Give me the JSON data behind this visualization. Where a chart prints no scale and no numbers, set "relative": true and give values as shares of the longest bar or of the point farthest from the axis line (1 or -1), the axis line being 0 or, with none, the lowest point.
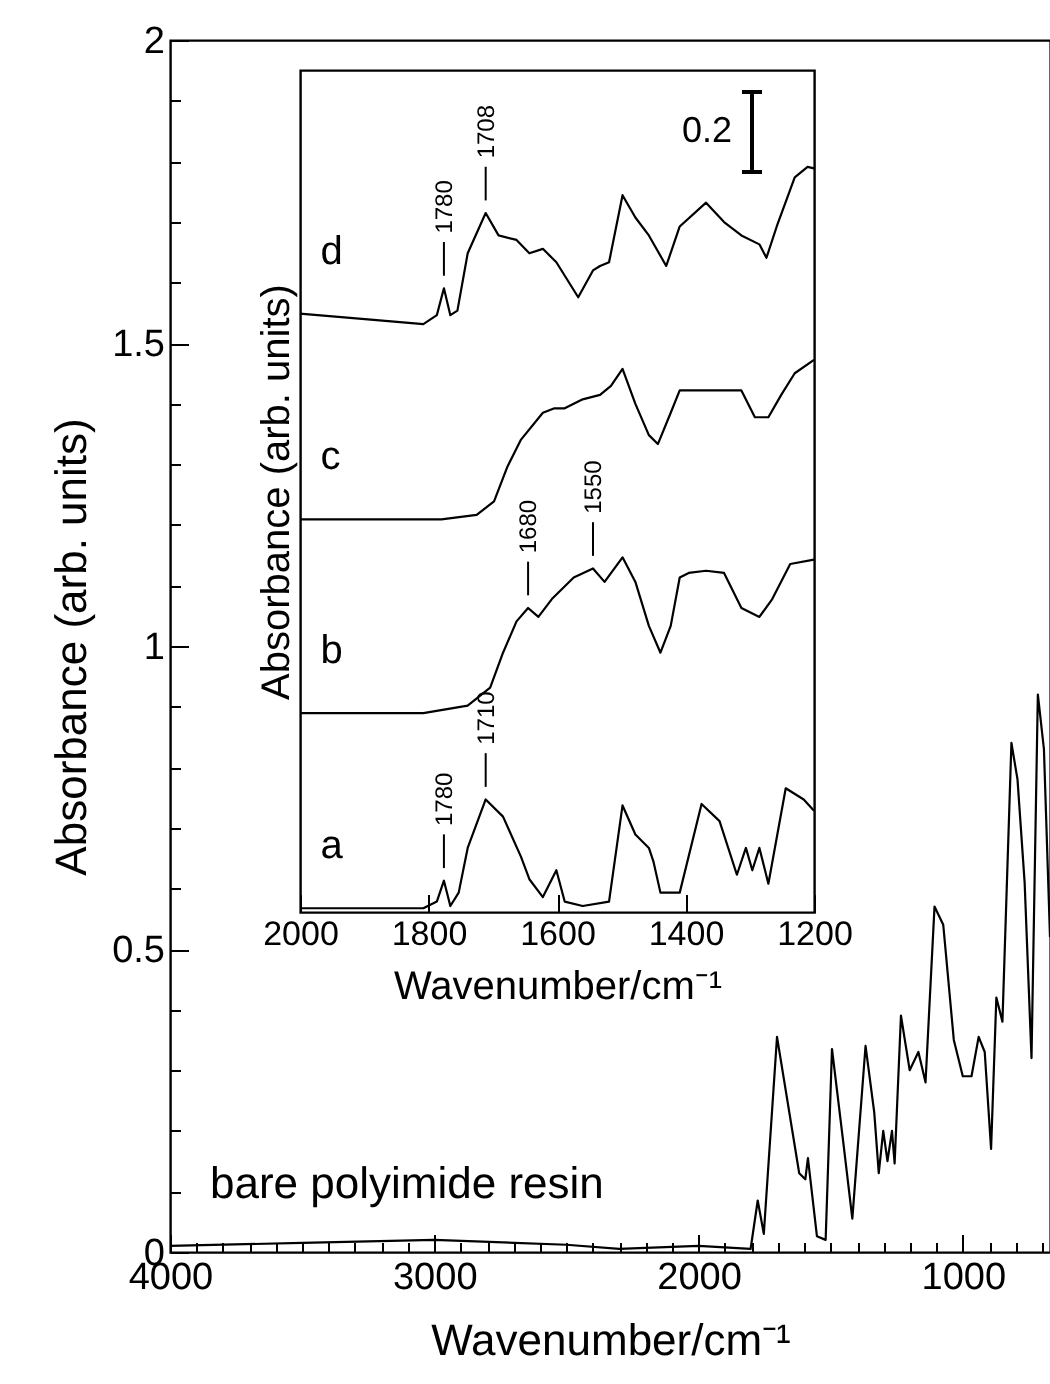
{
  "chart_data": [
    {
      "type": "line",
      "xlabel": "Wavenumber/cm⁻¹",
      "ylabel": "Absorbance (arb. units)",
      "color": "#000000",
      "xlim": [
        4000,
        670
      ],
      "ylim": [
        0,
        2
      ],
      "xticks": [
        4000,
        3000,
        2000,
        1000,
        {
          "value": 3900,
          "label": null
        },
        {
          "value": 3800,
          "label": null
        },
        {
          "value": 3700,
          "label": null
        },
        {
          "value": 3600,
          "label": null
        },
        {
          "value": 3500,
          "label": null
        },
        {
          "value": 3400,
          "label": null
        },
        {
          "value": 3300,
          "label": null
        },
        {
          "value": 3200,
          "label": null
        },
        {
          "value": 3100,
          "label": null
        },
        {
          "value": 2900,
          "label": null
        },
        {
          "value": 2800,
          "label": null
        },
        {
          "value": 2700,
          "label": null
        },
        {
          "value": 2600,
          "label": null
        },
        {
          "value": 2500,
          "label": null
        },
        {
          "value": 2400,
          "label": null
        },
        {
          "value": 2300,
          "label": null
        },
        {
          "value": 2200,
          "label": null
        },
        {
          "value": 2100,
          "label": null
        },
        {
          "value": 1900,
          "label": null
        },
        {
          "value": 1800,
          "label": null
        },
        {
          "value": 1700,
          "label": null
        },
        {
          "value": 1600,
          "label": null
        },
        {
          "value": 1500,
          "label": null
        },
        {
          "value": 1400,
          "label": null
        },
        {
          "value": 1300,
          "label": null
        },
        {
          "value": 1200,
          "label": null
        },
        {
          "value": 1100,
          "label": null
        },
        {
          "value": 900,
          "label": null
        },
        {
          "value": 800,
          "label": null
        },
        {
          "value": 700,
          "label": null
        }
      ],
      "yticks": [
        0,
        0.5,
        1,
        1.5,
        2,
        {
          "value": 0.1,
          "label": null
        },
        {
          "value": 0.2,
          "label": null
        },
        {
          "value": 0.3,
          "label": null
        },
        {
          "value": 0.4,
          "label": null
        },
        {
          "value": 0.6,
          "label": null
        },
        {
          "value": 0.7,
          "label": null
        },
        {
          "value": 0.8,
          "label": null
        },
        {
          "value": 0.9,
          "label": null
        },
        {
          "value": 1.1,
          "label": null
        },
        {
          "value": 1.2,
          "label": null
        },
        {
          "value": 1.3,
          "label": null
        },
        {
          "value": 1.4,
          "label": null
        },
        {
          "value": 1.6,
          "label": null
        },
        {
          "value": 1.7,
          "label": null
        },
        {
          "value": 1.8,
          "label": null
        },
        {
          "value": 1.9,
          "label": null
        }
      ],
      "x": [
        4000,
        3500,
        3000,
        2500,
        2300,
        2000,
        1803,
        1776,
        1753,
        1703,
        1619,
        1596,
        1586,
        1552,
        1519,
        1495,
        1452,
        1418,
        1368,
        1335,
        1318,
        1301,
        1285,
        1268,
        1258,
        1234,
        1201,
        1168,
        1141,
        1107,
        1074,
        1034,
        1000,
        967,
        940,
        917,
        893,
        873,
        850,
        816,
        793,
        766,
        740,
        716,
        693,
        670
      ],
      "values": [
        0.01,
        0.015,
        0.02,
        0.012,
        0.005,
        0.01,
        0.005,
        0.085,
        0.03,
        0.355,
        0.13,
        0.12,
        0.155,
        0.026,
        0.02,
        0.335,
        0.18,
        0.055,
        0.34,
        0.23,
        0.13,
        0.2,
        0.15,
        0.2,
        0.146,
        0.39,
        0.3,
        0.33,
        0.28,
        0.57,
        0.54,
        0.35,
        0.29,
        0.29,
        0.355,
        0.33,
        0.17,
        0.42,
        0.38,
        0.84,
        0.78,
        0.61,
        0.32,
        0.92,
        0.83,
        0.52
      ],
      "annotations": [
        "bare polyimide resin"
      ]
    },
    {
      "type": "line",
      "relative": true,
      "xlabel": "Wavenumber/cm⁻¹",
      "ylabel": "Absorbance (arb. units)",
      "xlim": [
        2000,
        1200
      ],
      "xticks": [
        2000,
        1800,
        1600,
        1400,
        1200
      ],
      "series": [
        {
          "name": "a",
          "color": "#000000",
          "x": [
            2000,
            1808,
            1787,
            1776,
            1766,
            1753,
            1739,
            1711,
            1684,
            1656,
            1643,
            1622,
            1601,
            1588,
            1560,
            1519,
            1498,
            1478,
            1457,
            1450,
            1439,
            1409,
            1375,
            1347,
            1320,
            1306,
            1296,
            1285,
            1271,
            1244,
            1216,
            1200
          ],
          "values": [
            0.005,
            0.005,
            0.014,
            0.042,
            0.008,
            0.026,
            0.086,
            0.151,
            0.128,
            0.074,
            0.044,
            0.02,
            0.056,
            0.014,
            0.008,
            0.014,
            0.143,
            0.104,
            0.086,
            0.068,
            0.026,
            0.026,
            0.145,
            0.122,
            0.05,
            0.086,
            0.056,
            0.086,
            0.038,
            0.166,
            0.151,
            0.136
          ]
        },
        {
          "name": "b",
          "color": "#000000",
          "x": [
            2000,
            1808,
            1739,
            1704,
            1684,
            1663,
            1645,
            1629,
            1608,
            1574,
            1544,
            1526,
            1498,
            1478,
            1457,
            1439,
            1423,
            1409,
            1395,
            1368,
            1340,
            1313,
            1285,
            1265,
            1237,
            1200
          ],
          "values": [
            0.267,
            0.267,
            0.277,
            0.301,
            0.348,
            0.39,
            0.408,
            0.396,
            0.42,
            0.449,
            0.461,
            0.443,
            0.476,
            0.443,
            0.384,
            0.348,
            0.384,
            0.449,
            0.455,
            0.458,
            0.455,
            0.408,
            0.396,
            0.42,
            0.467,
            0.473
          ]
        },
        {
          "name": "c",
          "color": "#000000",
          "x": [
            2000,
            1780,
            1725,
            1698,
            1677,
            1656,
            1622,
            1604,
            1588,
            1560,
            1533,
            1516,
            1498,
            1478,
            1457,
            1443,
            1423,
            1409,
            1381,
            1340,
            1313,
            1292,
            1271,
            1251,
            1230,
            1200
          ],
          "values": [
            0.527,
            0.527,
            0.533,
            0.551,
            0.598,
            0.634,
            0.67,
            0.676,
            0.676,
            0.688,
            0.694,
            0.706,
            0.729,
            0.682,
            0.64,
            0.628,
            0.67,
            0.7,
            0.7,
            0.7,
            0.7,
            0.664,
            0.664,
            0.694,
            0.723,
            0.741
          ]
        },
        {
          "name": "d",
          "color": "#000000",
          "x": [
            2000,
            1890,
            1808,
            1787,
            1776,
            1766,
            1755,
            1739,
            1711,
            1691,
            1663,
            1643,
            1622,
            1601,
            1567,
            1544,
            1533,
            1519,
            1498,
            1478,
            1457,
            1430,
            1409,
            1368,
            1340,
            1313,
            1285,
            1274,
            1258,
            1230,
            1210,
            1200
          ],
          "values": [
            0.803,
            0.795,
            0.789,
            0.801,
            0.837,
            0.801,
            0.807,
            0.884,
            0.938,
            0.908,
            0.902,
            0.884,
            0.89,
            0.872,
            0.825,
            0.861,
            0.867,
            0.872,
            0.962,
            0.932,
            0.908,
            0.867,
            0.92,
            0.952,
            0.926,
            0.908,
            0.896,
            0.878,
            0.92,
            0.986,
            1,
            0.998
          ]
        }
      ],
      "annotations": [
        {
          "text": "1780",
          "x": 1776,
          "y": 0.837
        },
        {
          "text": "1708",
          "x": 1711,
          "y": 0.938
        },
        {
          "text": "1680",
          "x": 1645,
          "y": 0.408
        },
        {
          "text": "1550",
          "x": 1544,
          "y": 0.461
        },
        {
          "text": "1780",
          "x": 1776,
          "y": 0.042
        },
        {
          "text": "1710",
          "x": 1711,
          "y": 0.151
        },
        "0.2"
      ]
    }
  ]
}
